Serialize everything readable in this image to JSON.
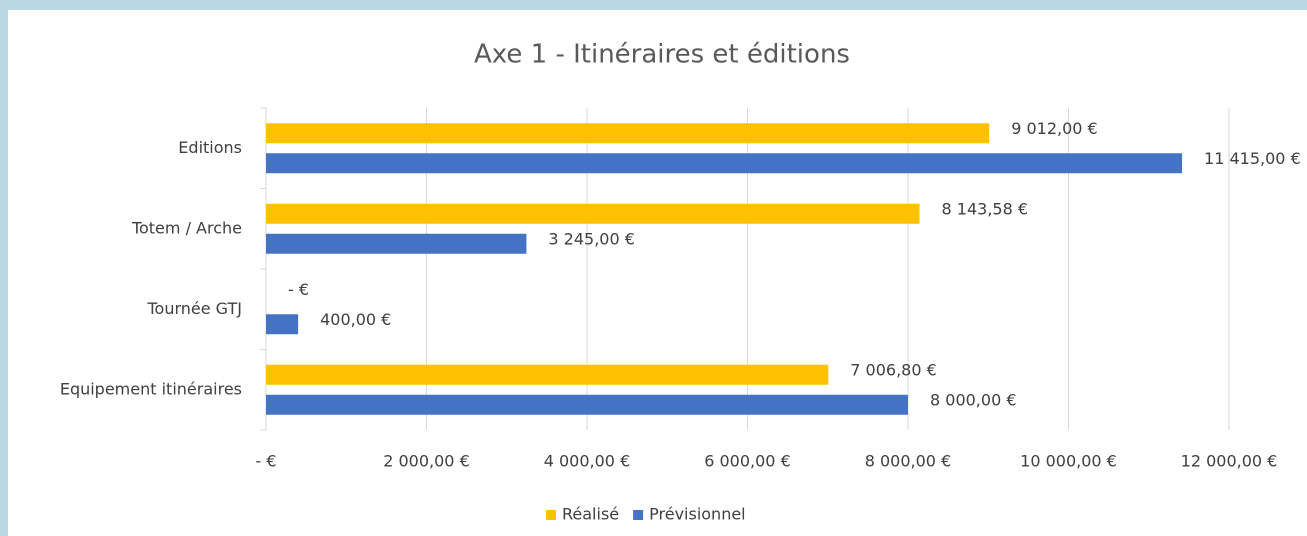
{
  "chart_data": {
    "type": "barh",
    "title": "Axe 1 - Itinéraires et éditions",
    "categories": [
      "Editions",
      "Totem / Arche",
      "Tournée GTJ",
      "Equipement itinéraires"
    ],
    "series": [
      {
        "name": "Réalisé",
        "color": "#ffc000",
        "values": [
          9012,
          8143.58,
          0,
          7006.8
        ],
        "value_labels": [
          "9 012,00 €",
          "8 143,58 €",
          "- €",
          "7 006,80 €"
        ]
      },
      {
        "name": "Prévisionnel",
        "color": "#4472c4",
        "values": [
          11415,
          3245,
          400,
          8000
        ],
        "value_labels": [
          "11 415,00 €",
          "3 245,00 €",
          "400,00 €",
          "8 000,00 €"
        ]
      }
    ],
    "xlim": [
      0,
      12000
    ],
    "xticks": [
      {
        "value": 0,
        "label": "- €"
      },
      {
        "value": 2000,
        "label": "2 000,00 €"
      },
      {
        "value": 4000,
        "label": "4 000,00 €"
      },
      {
        "value": 6000,
        "label": "6 000,00 €"
      },
      {
        "value": 8000,
        "label": "8 000,00 €"
      },
      {
        "value": 10000,
        "label": "10 000,00 €"
      },
      {
        "value": 12000,
        "label": "12 000,00 €"
      }
    ],
    "grid": true,
    "legend": "bottom"
  }
}
